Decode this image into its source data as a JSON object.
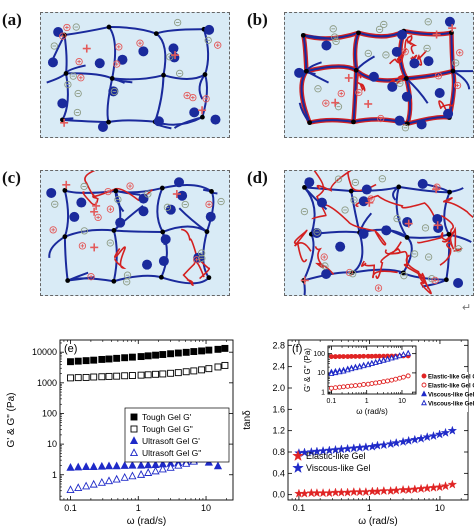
{
  "panels": {
    "a": "(a)",
    "b": "(b)",
    "c": "(c)",
    "d": "(d)"
  },
  "return_mark": "↵",
  "colors": {
    "network": "#1a2a9c",
    "red_chain": "#d42020",
    "bg": "#d9ebf6",
    "neg_ion": "#8e9c86",
    "pos_ion": "#e35a5a",
    "blue_series": "#1f2ac8"
  },
  "chart_data": [
    {
      "type": "scatter",
      "panel_label": "(e)",
      "xlabel": "ω (rad/s)",
      "ylabel": "G' & G\" (Pa)",
      "xscale": "log",
      "yscale": "log",
      "xlim": [
        0.07,
        25
      ],
      "ylim": [
        0.15,
        25000
      ],
      "xticks": [
        {
          "v": 0.1,
          "label": "0.1"
        },
        {
          "v": 1,
          "label": "1"
        },
        {
          "v": 10,
          "label": "10"
        }
      ],
      "yticks": [
        {
          "v": 1,
          "label": "1"
        },
        {
          "v": 10,
          "label": "10"
        },
        {
          "v": 100,
          "label": "100"
        },
        {
          "v": 1000,
          "label": "1000"
        },
        {
          "v": 10000,
          "label": "10000"
        }
      ],
      "legend_position": "right",
      "series": [
        {
          "name": "Tough Gel G'",
          "marker": "square",
          "fill": true,
          "color": "#000000",
          "x": [
            0.1,
            0.13,
            0.17,
            0.22,
            0.29,
            0.37,
            0.48,
            0.63,
            0.82,
            1.1,
            1.4,
            1.8,
            2.3,
            3,
            3.9,
            5.1,
            6.6,
            8.6,
            11,
            15,
            19
          ],
          "y": [
            4900,
            5100,
            5300,
            5500,
            5800,
            6000,
            6300,
            6600,
            6900,
            7200,
            7600,
            8000,
            8400,
            8900,
            9400,
            9900,
            10500,
            11000,
            11700,
            12400,
            13300
          ]
        },
        {
          "name": "Tough Gel G\"",
          "marker": "square",
          "fill": false,
          "color": "#000000",
          "x": [
            0.1,
            0.13,
            0.17,
            0.22,
            0.29,
            0.37,
            0.48,
            0.63,
            0.82,
            1.1,
            1.4,
            1.8,
            2.3,
            3,
            3.9,
            5.1,
            6.6,
            8.6,
            11,
            15,
            19
          ],
          "y": [
            1450,
            1480,
            1500,
            1550,
            1580,
            1620,
            1650,
            1700,
            1730,
            1780,
            1830,
            1900,
            1950,
            2050,
            2150,
            2300,
            2450,
            2650,
            2900,
            3300,
            3700
          ]
        },
        {
          "name": "Ultrasoft Gel G'",
          "marker": "triangle",
          "fill": true,
          "color": "#1f2ac8",
          "x": [
            0.1,
            0.13,
            0.17,
            0.22,
            0.29,
            0.37,
            0.48,
            0.63,
            0.82,
            1.1,
            1.4,
            1.8,
            2.3,
            3,
            3.9,
            5.1,
            6.6,
            8.6,
            11,
            15
          ],
          "y": [
            1.7,
            1.75,
            1.8,
            1.8,
            1.85,
            1.9,
            1.9,
            1.95,
            2.0,
            2.0,
            2.05,
            2.1,
            2.2,
            2.3,
            2.4,
            2.6,
            2.9,
            3.2,
            2.5,
            1.9
          ]
        },
        {
          "name": "Ultrasoft Gel G\"",
          "marker": "triangle",
          "fill": false,
          "color": "#1f2ac8",
          "x": [
            0.1,
            0.13,
            0.17,
            0.22,
            0.29,
            0.37,
            0.48,
            0.63,
            0.82,
            1.1,
            1.4,
            1.8,
            2.3,
            3,
            3.9,
            5.1,
            6.6,
            8.6,
            11,
            15
          ],
          "y": [
            0.32,
            0.37,
            0.42,
            0.48,
            0.55,
            0.62,
            0.7,
            0.8,
            0.9,
            1.0,
            1.15,
            1.3,
            1.5,
            1.7,
            2.0,
            2.3,
            2.7,
            3.3,
            4.2,
            5.5
          ]
        }
      ]
    },
    {
      "type": "scatter",
      "panel_label": "(f)",
      "xlabel": "ω (rad/s)",
      "ylabel": "tanδ",
      "xscale": "log",
      "yscale": "linear",
      "xlim": [
        0.07,
        25
      ],
      "ylim": [
        -0.1,
        2.9
      ],
      "xticks": [
        {
          "v": 0.1,
          "label": "0.1"
        },
        {
          "v": 1,
          "label": "1"
        },
        {
          "v": 10,
          "label": "10"
        }
      ],
      "yticks": [
        {
          "v": 0,
          "label": "0.0"
        },
        {
          "v": 0.4,
          "label": "0.4"
        },
        {
          "v": 0.8,
          "label": "0.8"
        },
        {
          "v": 1.2,
          "label": "1.2"
        },
        {
          "v": 1.6,
          "label": "1.6"
        },
        {
          "v": 2.0,
          "label": "2.0"
        },
        {
          "v": 2.4,
          "label": "2.4"
        },
        {
          "v": 2.8,
          "label": "2.8"
        }
      ],
      "legend_position": "bottom-left",
      "series": [
        {
          "name": "Elastic-like Gel",
          "marker": "star",
          "color": "#e02424",
          "x": [
            0.1,
            0.12,
            0.15,
            0.18,
            0.22,
            0.27,
            0.33,
            0.4,
            0.49,
            0.6,
            0.73,
            0.89,
            1.1,
            1.3,
            1.6,
            2,
            2.4,
            3,
            3.6,
            4.4,
            5.4,
            6.6,
            8.1,
            9.9,
            12,
            15
          ],
          "y": [
            0.02,
            0.02,
            0.03,
            0.03,
            0.03,
            0.03,
            0.04,
            0.04,
            0.04,
            0.05,
            0.05,
            0.05,
            0.06,
            0.06,
            0.07,
            0.07,
            0.08,
            0.09,
            0.09,
            0.1,
            0.11,
            0.12,
            0.13,
            0.14,
            0.16,
            0.19
          ]
        },
        {
          "name": "Viscous-like Gel",
          "marker": "star",
          "color": "#1f2ac8",
          "x": [
            0.1,
            0.12,
            0.15,
            0.18,
            0.22,
            0.27,
            0.33,
            0.4,
            0.49,
            0.6,
            0.73,
            0.89,
            1.1,
            1.3,
            1.6,
            2,
            2.4,
            3,
            3.6,
            4.4,
            5.4,
            6.6,
            8.1,
            9.9,
            12,
            15
          ],
          "y": [
            0.78,
            0.79,
            0.8,
            0.81,
            0.82,
            0.83,
            0.84,
            0.85,
            0.86,
            0.87,
            0.88,
            0.89,
            0.9,
            0.92,
            0.93,
            0.95,
            0.97,
            0.99,
            1.01,
            1.03,
            1.05,
            1.08,
            1.1,
            1.13,
            1.16,
            1.2
          ]
        }
      ],
      "inset": {
        "ylabel": "G' & G\" (Pa)",
        "xlabel": "ω (rad/s)",
        "xscale": "log",
        "yscale": "log",
        "xlim": [
          0.08,
          25
        ],
        "ylim": [
          0.8,
          250
        ],
        "xticks": [
          {
            "v": 0.1,
            "label": "0.1"
          },
          {
            "v": 1,
            "label": "1"
          },
          {
            "v": 10,
            "label": "10"
          }
        ],
        "yticks": [
          {
            "v": 1,
            "label": "1"
          },
          {
            "v": 10,
            "label": "10"
          },
          {
            "v": 100,
            "label": "100"
          }
        ],
        "series": [
          {
            "name": "Elastic-like Gel G'",
            "marker": "circle",
            "fill": true,
            "color": "#e02424",
            "x": [
              0.1,
              0.13,
              0.17,
              0.22,
              0.29,
              0.37,
              0.48,
              0.63,
              0.82,
              1.1,
              1.4,
              1.8,
              2.3,
              3,
              3.9,
              5.1,
              6.6,
              8.6,
              11,
              15
            ],
            "y": [
              70,
              70,
              71,
              71,
              71,
              72,
              72,
              72,
              73,
              73,
              73,
              74,
              74,
              74,
              75,
              75,
              75,
              76,
              76,
              76
            ]
          },
          {
            "name": "Elastic-like Gel G\"",
            "marker": "circle",
            "fill": false,
            "color": "#e02424",
            "x": [
              0.1,
              0.13,
              0.17,
              0.22,
              0.29,
              0.37,
              0.48,
              0.63,
              0.82,
              1.1,
              1.4,
              1.8,
              2.3,
              3,
              3.9,
              5.1,
              6.6,
              8.6,
              11,
              15
            ],
            "y": [
              1.6,
              1.7,
              1.8,
              1.9,
              2.0,
              2.1,
              2.2,
              2.3,
              2.5,
              2.6,
              2.8,
              3.0,
              3.2,
              3.5,
              3.8,
              4.2,
              4.7,
              5.3,
              6.0,
              7.0
            ]
          },
          {
            "name": "Viscous-like Gel G'",
            "marker": "triangle",
            "fill": true,
            "color": "#1f2ac8",
            "x": [
              0.1,
              0.13,
              0.17,
              0.22,
              0.29,
              0.37,
              0.48,
              0.63,
              0.82,
              1.1,
              1.4,
              1.8,
              2.3,
              3,
              3.9,
              5.1,
              6.6,
              8.6,
              11,
              15
            ],
            "y": [
              11,
              12,
              13,
              14,
              16,
              18,
              20,
              22,
              25,
              28,
              32,
              36,
              40,
              46,
              52,
              60,
              68,
              78,
              90,
              105
            ]
          },
          {
            "name": "Viscous-like Gel G\"",
            "marker": "triangle",
            "fill": false,
            "color": "#1f2ac8",
            "x": [
              0.1,
              0.13,
              0.17,
              0.22,
              0.29,
              0.37,
              0.48,
              0.63,
              0.82,
              1.1,
              1.4,
              1.8,
              2.3,
              3,
              3.9,
              5.1,
              6.6,
              8.6,
              11,
              15
            ],
            "y": [
              9,
              10,
              11,
              12,
              14,
              16,
              18,
              20,
              23,
              26,
              30,
              34,
              38,
              44,
              50,
              58,
              66,
              76,
              88,
              102
            ]
          }
        ]
      }
    }
  ]
}
